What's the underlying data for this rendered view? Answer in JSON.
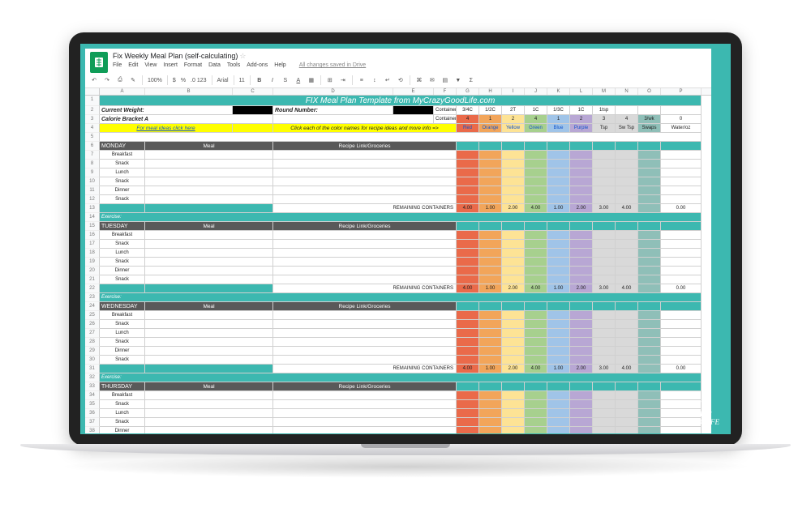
{
  "doc": {
    "title": "Fix Weekly Meal Plan (self-calculating)",
    "menus": [
      "File",
      "Edit",
      "View",
      "Insert",
      "Format",
      "Data",
      "Tools",
      "Add-ons",
      "Help"
    ],
    "saved": "All changes saved in Drive"
  },
  "toolbar": {
    "zoom": "100%",
    "currency": "$",
    "percent": "%",
    "decimal": ".0 123",
    "font": "Arial",
    "size": "11"
  },
  "cols": {
    "labels": [
      "",
      "A",
      "B",
      "C",
      "D",
      "E",
      "F",
      "G",
      "H",
      "I",
      "J",
      "K",
      "L",
      "M",
      "N",
      "O",
      "P"
    ],
    "widths": [
      18,
      56,
      108,
      50,
      148,
      50,
      28,
      28,
      28,
      28,
      28,
      28,
      28,
      28,
      28,
      28,
      50
    ]
  },
  "sheet": {
    "title": "FIX Meal Plan Template from MyCrazyGoodLife.com",
    "row2": {
      "cw": "Current Weight:",
      "rn": "Round Number:",
      "csizes": "Container Sizes:"
    },
    "sizes": [
      "3/4C",
      "1/2C",
      "2T",
      "1C",
      "1/3C",
      "1C",
      "1tsp",
      "",
      ""
    ],
    "row3": {
      "bracket": "Calorie Bracket A",
      "containers": "Containers:"
    },
    "nums": [
      "4",
      "1",
      "2",
      "4",
      "1",
      "2",
      "3",
      "4",
      "3/wk",
      "0"
    ],
    "names": [
      "Red",
      "Orange",
      "Yellow",
      "Green",
      "Blue",
      "Purple",
      "Tsp",
      "Sw Tsp",
      "Swaps",
      "Water/oz"
    ],
    "yellow1": "For meal ideas click here",
    "yellow2": "Click each of the color names for recipe ideas and more info =>",
    "colors": [
      "#ea6a4a",
      "#f2a列5a",
      "#fde395",
      "#a7d08e",
      "#a0c4e8",
      "#b8a7d4",
      "#d9d9d9",
      "#d9d9d9",
      "#8fbfb8",
      "#ffffff"
    ],
    "colors_fix": [
      "#ea6a4a",
      "#f2a55a",
      "#fde395",
      "#a7d08e",
      "#a0c4e8",
      "#b8a7d4",
      "#d9d9d9",
      "#d9d9d9",
      "#8fbfb8",
      "#ffffff"
    ],
    "days": [
      "MONDAY",
      "TUESDAY",
      "WEDNESDAY",
      "THURSDAY"
    ],
    "mealcol": "Meal",
    "recipecol": "Recipe Link/Groceries",
    "meals": [
      "Breakfast",
      "Snack",
      "Lunch",
      "Snack",
      "Dinner",
      "Snack"
    ],
    "remaining": "REMAINING CONTAINERS",
    "remvals": [
      "4.00",
      "1.00",
      "2.00",
      "4.00",
      "1.00",
      "2.00",
      "3.00",
      "4.00",
      "",
      "0.00"
    ],
    "exercise": "Exercise:"
  },
  "watermark": {
    "l1": "MY",
    "l2": "crazy",
    "l3": "GOOD LIFE"
  }
}
